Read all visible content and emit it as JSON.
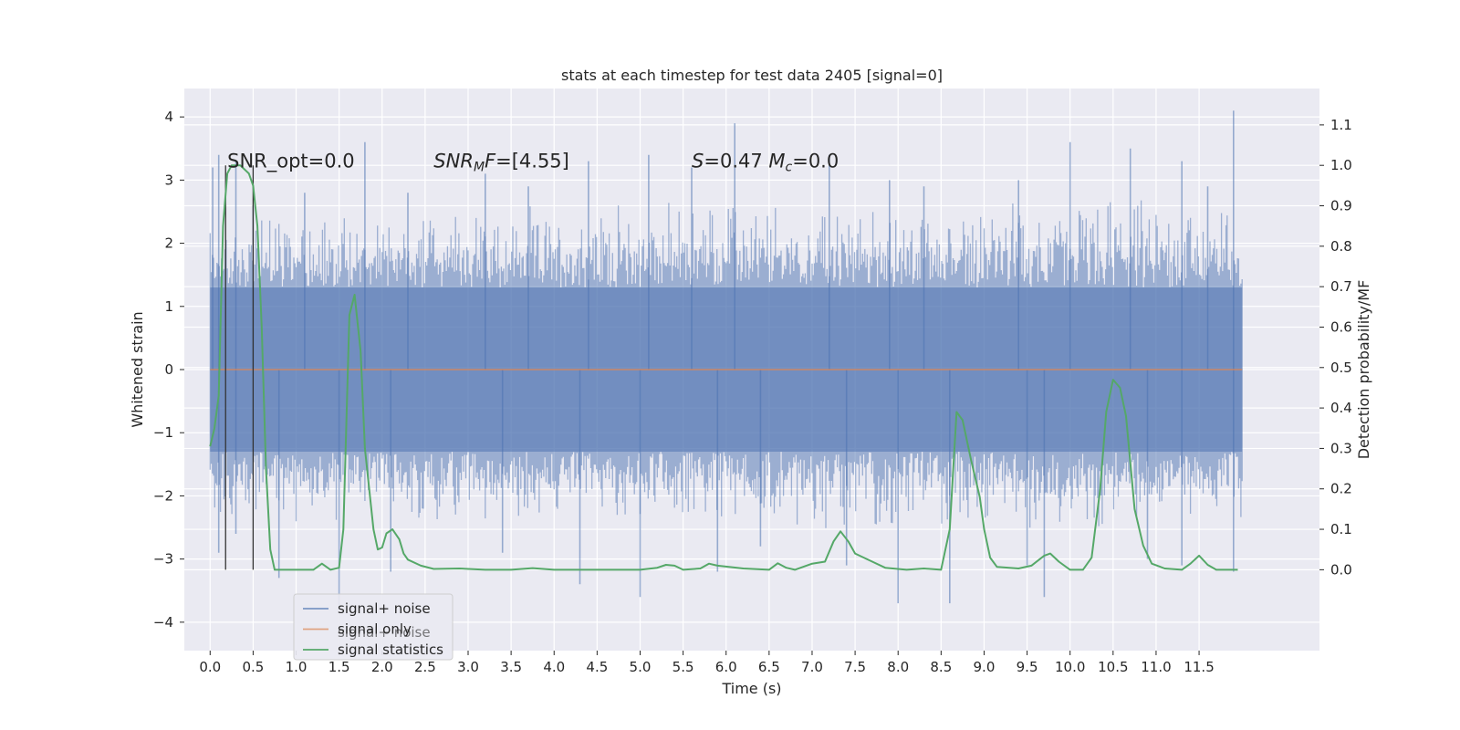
{
  "chart_data": {
    "type": "line",
    "title": "stats at each timestep for test data 2405 [signal=0]",
    "xlabel": "Time (s)",
    "ylabel": "Whitened strain",
    "y2label": "Detection probability/MF",
    "xlim": [
      -0.3,
      12.9
    ],
    "ylim": [
      -4.45,
      4.45
    ],
    "y2lim": [
      -0.2,
      1.19
    ],
    "xticks": [
      0.0,
      0.5,
      1.0,
      1.5,
      2.0,
      2.5,
      3.0,
      3.5,
      4.0,
      4.5,
      5.0,
      5.5,
      6.0,
      6.5,
      7.0,
      7.5,
      8.0,
      8.5,
      9.0,
      9.5,
      10.0,
      10.5,
      11.0,
      11.5
    ],
    "xtick_labels": [
      "0.0",
      "0.5",
      "1.0",
      "1.5",
      "2.0",
      "2.5",
      "3.0",
      "3.5",
      "4.0",
      "4.5",
      "5.0",
      "5.5",
      "6.0",
      "6.5",
      "7.0",
      "7.5",
      "8.0",
      "8.5",
      "9.0",
      "9.5",
      "10.0",
      "10.5",
      "11.0",
      "11.5"
    ],
    "yticks": [
      -4,
      -3,
      -2,
      -1,
      0,
      1,
      2,
      3,
      4
    ],
    "ytick_labels": [
      "−4",
      "−3",
      "−2",
      "−1",
      "0",
      "1",
      "2",
      "3",
      "4"
    ],
    "y2ticks": [
      0.0,
      0.1,
      0.2,
      0.3,
      0.4,
      0.5,
      0.6,
      0.7,
      0.8,
      0.9,
      1.0,
      1.1
    ],
    "y2tick_labels": [
      "0.0",
      "0.1",
      "0.2",
      "0.3",
      "0.4",
      "0.5",
      "0.6",
      "0.7",
      "0.8",
      "0.9",
      "1.0",
      "1.1"
    ],
    "grid": true,
    "legend_position": "lower-left",
    "colors": {
      "noise": "#4c72b0",
      "signal": "#dd8452",
      "stats": "#55a868",
      "markers": "#333333",
      "background": "#eaeaf2"
    },
    "series": [
      {
        "name": "signal+ noise",
        "axis": "left",
        "style": "band",
        "x_range": [
          0.0,
          12.0
        ],
        "core_band": [
          -1.3,
          1.3
        ],
        "upper_envelope": [
          [
            0.0,
            2.6
          ],
          [
            1.0,
            2.4
          ],
          [
            2.0,
            2.5
          ],
          [
            3.0,
            2.7
          ],
          [
            4.0,
            2.6
          ],
          [
            5.0,
            2.7
          ],
          [
            6.0,
            2.8
          ],
          [
            7.0,
            2.7
          ],
          [
            8.0,
            2.6
          ],
          [
            9.0,
            2.7
          ],
          [
            10.0,
            2.8
          ],
          [
            11.0,
            2.8
          ],
          [
            12.0,
            2.6
          ]
        ],
        "lower_envelope": [
          [
            0.0,
            -2.5
          ],
          [
            1.0,
            -2.5
          ],
          [
            2.0,
            -2.4
          ],
          [
            3.0,
            -2.5
          ],
          [
            4.0,
            -2.4
          ],
          [
            5.0,
            -2.5
          ],
          [
            6.0,
            -2.5
          ],
          [
            7.0,
            -2.6
          ],
          [
            8.0,
            -2.7
          ],
          [
            9.0,
            -2.5
          ],
          [
            10.0,
            -2.6
          ],
          [
            11.0,
            -2.5
          ],
          [
            12.0,
            -2.5
          ]
        ],
        "peaks": [
          [
            0.03,
            3.2
          ],
          [
            0.1,
            3.4
          ],
          [
            0.3,
            3.3
          ],
          [
            0.5,
            2.6
          ],
          [
            1.1,
            2.8
          ],
          [
            1.8,
            3.6
          ],
          [
            2.3,
            2.8
          ],
          [
            3.2,
            3.1
          ],
          [
            3.7,
            2.9
          ],
          [
            4.4,
            3.3
          ],
          [
            5.1,
            3.4
          ],
          [
            5.6,
            3.2
          ],
          [
            6.1,
            3.9
          ],
          [
            7.2,
            3.4
          ],
          [
            7.9,
            3.0
          ],
          [
            8.3,
            2.9
          ],
          [
            9.4,
            3.0
          ],
          [
            10.0,
            3.6
          ],
          [
            10.7,
            3.5
          ],
          [
            11.3,
            3.3
          ],
          [
            11.6,
            2.9
          ],
          [
            11.9,
            4.1
          ]
        ],
        "troughs": [
          [
            0.1,
            -2.9
          ],
          [
            0.3,
            -2.6
          ],
          [
            0.8,
            -3.3
          ],
          [
            1.5,
            -3.8
          ],
          [
            2.1,
            -3.2
          ],
          [
            3.4,
            -2.9
          ],
          [
            4.3,
            -3.4
          ],
          [
            5.0,
            -3.6
          ],
          [
            5.9,
            -3.2
          ],
          [
            6.4,
            -2.8
          ],
          [
            7.4,
            -3.1
          ],
          [
            8.0,
            -3.7
          ],
          [
            8.6,
            -3.7
          ],
          [
            9.5,
            -3.1
          ],
          [
            9.7,
            -3.6
          ],
          [
            10.9,
            -3.0
          ],
          [
            11.3,
            -3.1
          ],
          [
            11.9,
            -3.2
          ]
        ]
      },
      {
        "name": "signal only",
        "axis": "left",
        "style": "line",
        "points": [
          [
            0.0,
            0.0
          ],
          [
            12.0,
            0.0
          ]
        ]
      },
      {
        "name": "signal statistics",
        "axis": "right",
        "style": "line",
        "points": [
          [
            0.0,
            0.305
          ],
          [
            0.05,
            0.35
          ],
          [
            0.1,
            0.43
          ],
          [
            0.15,
            0.85
          ],
          [
            0.2,
            0.98
          ],
          [
            0.25,
            1.0
          ],
          [
            0.35,
            1.0
          ],
          [
            0.45,
            0.98
          ],
          [
            0.5,
            0.95
          ],
          [
            0.55,
            0.85
          ],
          [
            0.6,
            0.6
          ],
          [
            0.65,
            0.25
          ],
          [
            0.7,
            0.05
          ],
          [
            0.75,
            0.0
          ],
          [
            0.9,
            0.0
          ],
          [
            1.2,
            0.0
          ],
          [
            1.3,
            0.015
          ],
          [
            1.4,
            0.0
          ],
          [
            1.5,
            0.005
          ],
          [
            1.55,
            0.1
          ],
          [
            1.62,
            0.63
          ],
          [
            1.68,
            0.68
          ],
          [
            1.75,
            0.54
          ],
          [
            1.8,
            0.3
          ],
          [
            1.9,
            0.1
          ],
          [
            1.95,
            0.05
          ],
          [
            2.0,
            0.055
          ],
          [
            2.05,
            0.09
          ],
          [
            2.12,
            0.1
          ],
          [
            2.2,
            0.075
          ],
          [
            2.25,
            0.04
          ],
          [
            2.3,
            0.025
          ],
          [
            2.45,
            0.01
          ],
          [
            2.6,
            0.002
          ],
          [
            2.9,
            0.003
          ],
          [
            3.2,
            0.0
          ],
          [
            3.5,
            0.0
          ],
          [
            3.75,
            0.004
          ],
          [
            4.0,
            0.0
          ],
          [
            4.5,
            0.0
          ],
          [
            5.0,
            0.0
          ],
          [
            5.2,
            0.005
          ],
          [
            5.3,
            0.012
          ],
          [
            5.4,
            0.01
          ],
          [
            5.5,
            0.0
          ],
          [
            5.7,
            0.003
          ],
          [
            5.8,
            0.015
          ],
          [
            5.9,
            0.01
          ],
          [
            6.2,
            0.003
          ],
          [
            6.5,
            0.0
          ],
          [
            6.6,
            0.016
          ],
          [
            6.7,
            0.005
          ],
          [
            6.8,
            0.0
          ],
          [
            7.0,
            0.015
          ],
          [
            7.15,
            0.02
          ],
          [
            7.25,
            0.07
          ],
          [
            7.33,
            0.095
          ],
          [
            7.42,
            0.07
          ],
          [
            7.5,
            0.04
          ],
          [
            7.7,
            0.02
          ],
          [
            7.85,
            0.005
          ],
          [
            8.1,
            0.0
          ],
          [
            8.3,
            0.003
          ],
          [
            8.5,
            0.0
          ],
          [
            8.6,
            0.1
          ],
          [
            8.68,
            0.39
          ],
          [
            8.75,
            0.37
          ],
          [
            8.85,
            0.27
          ],
          [
            8.95,
            0.18
          ],
          [
            9.0,
            0.1
          ],
          [
            9.07,
            0.03
          ],
          [
            9.15,
            0.007
          ],
          [
            9.4,
            0.003
          ],
          [
            9.55,
            0.01
          ],
          [
            9.7,
            0.035
          ],
          [
            9.77,
            0.04
          ],
          [
            9.87,
            0.02
          ],
          [
            10.0,
            0.0
          ],
          [
            10.15,
            0.0
          ],
          [
            10.25,
            0.03
          ],
          [
            10.35,
            0.2
          ],
          [
            10.42,
            0.39
          ],
          [
            10.5,
            0.47
          ],
          [
            10.58,
            0.45
          ],
          [
            10.65,
            0.38
          ],
          [
            10.75,
            0.15
          ],
          [
            10.85,
            0.06
          ],
          [
            10.95,
            0.015
          ],
          [
            11.1,
            0.003
          ],
          [
            11.3,
            0.0
          ],
          [
            11.4,
            0.015
          ],
          [
            11.5,
            0.035
          ],
          [
            11.6,
            0.012
          ],
          [
            11.7,
            0.0
          ],
          [
            11.95,
            0.0
          ]
        ]
      }
    ],
    "vertical_markers": [
      0.18,
      0.5
    ],
    "annotations": [
      {
        "x": 0.2,
        "y": 3.2,
        "segments": [
          {
            "t": "SNR_opt=0.0"
          }
        ]
      },
      {
        "x": 2.6,
        "y": 3.2,
        "segments": [
          {
            "t": "SNR",
            "it": true
          },
          {
            "t": "M",
            "it": true,
            "sub": true
          },
          {
            "t": "F",
            "it": true
          },
          {
            "t": "=[4.55]"
          }
        ]
      },
      {
        "x": 5.6,
        "y": 3.2,
        "segments": [
          {
            "t": "S",
            "it": true
          },
          {
            "t": "=0.47   "
          },
          {
            "t": "M",
            "it": true
          },
          {
            "t": "c",
            "it": true,
            "sub": true
          },
          {
            "t": "=0.0"
          }
        ]
      }
    ],
    "legend": [
      {
        "label": "signal+ noise",
        "series": 0
      },
      {
        "label": "signal only",
        "series": 1
      },
      {
        "label": "signal statistics",
        "series": 2
      }
    ],
    "legend_ghost_text": "signal+ noise"
  }
}
